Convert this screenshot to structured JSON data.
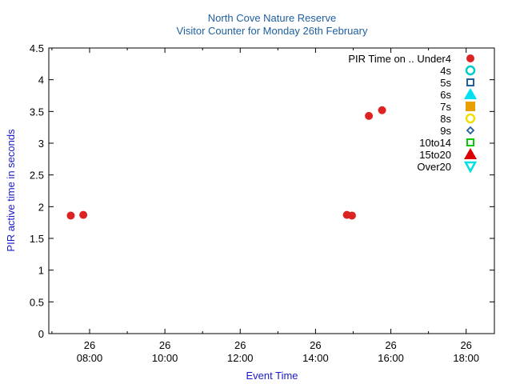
{
  "chart_data": {
    "type": "scatter",
    "title": "North Cove Nature Reserve",
    "subtitle": "Visitor Counter for Monday 26th February",
    "xlabel": "Event Time",
    "ylabel": "PIR active time in seconds",
    "xlim": [
      "06:55",
      "18:45"
    ],
    "ylim": [
      0,
      4.5
    ],
    "y_ticks": [
      "0",
      "0.5",
      "1",
      "1.5",
      "2",
      "2.5",
      "3",
      "3.5",
      "4",
      "4.5"
    ],
    "x_ticks": [
      {
        "day": "26",
        "time": "08:00"
      },
      {
        "day": "26",
        "time": "10:00"
      },
      {
        "day": "26",
        "time": "12:00"
      },
      {
        "day": "26",
        "time": "14:00"
      },
      {
        "day": "26",
        "time": "16:00"
      },
      {
        "day": "26",
        "time": "18:00"
      }
    ],
    "grid": false,
    "legend_position": "top-right",
    "legend_title": "PIR Time on ..",
    "series": [
      {
        "name": "Under4",
        "color": "#dd2222",
        "marker": "filled-circle",
        "points": [
          {
            "x": "07:30",
            "y": 1.86
          },
          {
            "x": "07:50",
            "y": 1.87
          },
          {
            "x": "14:50",
            "y": 1.87
          },
          {
            "x": "14:58",
            "y": 1.86
          },
          {
            "x": "15:25",
            "y": 3.43
          },
          {
            "x": "15:46",
            "y": 3.52
          }
        ]
      },
      {
        "name": "4s",
        "color": "#00cccc",
        "marker": "open-circle",
        "points": []
      },
      {
        "name": "5s",
        "color": "#1f5fa0",
        "marker": "open-square",
        "points": []
      },
      {
        "name": "6s",
        "color": "#00e0f0",
        "marker": "filled-triangle-up",
        "points": []
      },
      {
        "name": "7s",
        "color": "#e8a000",
        "marker": "filled-square",
        "points": []
      },
      {
        "name": "8s",
        "color": "#f0e000",
        "marker": "open-circle",
        "points": []
      },
      {
        "name": "9s",
        "color": "#1f5fa0",
        "marker": "open-diamond",
        "points": []
      },
      {
        "name": "10to14",
        "color": "#00cc00",
        "marker": "open-square",
        "points": []
      },
      {
        "name": "15to20",
        "color": "#dd0000",
        "marker": "filled-triangle-up",
        "points": []
      },
      {
        "name": "Over20",
        "color": "#00e0e0",
        "marker": "open-triangle-down",
        "points": []
      }
    ]
  }
}
